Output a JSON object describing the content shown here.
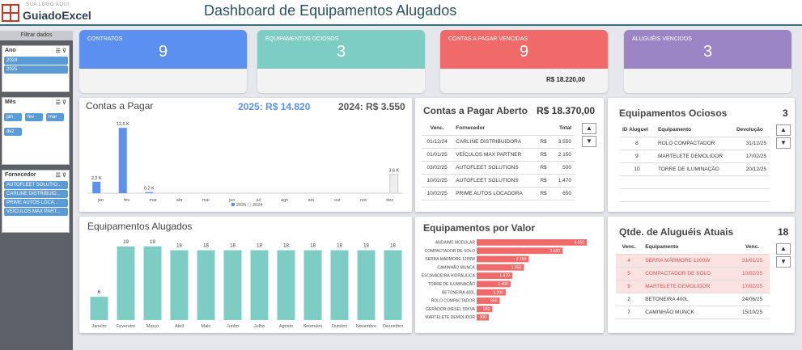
{
  "header": {
    "logo_small": "SUA LOGO AQUI",
    "logo_big": "GuiadoExcel",
    "title": "Dashboard de Equipamentos Alugados"
  },
  "sidebar": {
    "title": "Filtrar dados",
    "ano": {
      "label": "Ano",
      "items": [
        "2024",
        "2025"
      ]
    },
    "mes": {
      "label": "Mês",
      "items": [
        "jan",
        "fev",
        "mar",
        "dez"
      ]
    },
    "fornecedor": {
      "label": "Fornecedor",
      "items": [
        "AUTOFLEET SOLUTIO...",
        "CARLINE DISTRIBUID...",
        "PRIME AUTOS LOCA...",
        "VEÍCULOS MAX PART..."
      ]
    }
  },
  "kpis": [
    {
      "label": "CONTRATOS",
      "value": "9",
      "color": "#5b8ff0",
      "sub": ""
    },
    {
      "label": "EQUIPAMENTOS OCIOSOS",
      "value": "3",
      "color": "#7ecdc5",
      "sub": ""
    },
    {
      "label": "CONTAS A PAGAR VENCIDAS",
      "value": "9",
      "color": "#f06a6a",
      "sub": "R$ 18.220,00"
    },
    {
      "label": "ALUGUÉIS VENCIDOS",
      "value": "3",
      "color": "#9b85c4",
      "sub": ""
    }
  ],
  "contas_pagar": {
    "title": "Contas a Pagar",
    "total_2025": "2025: R$ 14.820",
    "total_2024": "2024: R$ 3.550",
    "legend_2025": "2025",
    "legend_2024": "2024"
  },
  "chart_data": [
    {
      "type": "bar",
      "title": "Contas a Pagar",
      "categories": [
        "jan",
        "fev",
        "mar",
        "abr",
        "mai",
        "jun",
        "jul",
        "ago",
        "set",
        "out",
        "nov",
        "dez"
      ],
      "series": [
        {
          "name": "2025",
          "values": [
            2.2,
            12.5,
            0.2,
            0,
            0,
            0,
            0,
            0,
            0,
            0,
            0,
            0
          ],
          "color": "#5b8ff0"
        },
        {
          "name": "2024",
          "values": [
            0,
            0,
            0,
            0,
            0,
            0,
            0,
            0,
            0,
            0,
            0,
            3.6
          ],
          "color": "#eeeeee"
        }
      ],
      "data_labels": [
        "2,2 K",
        "12,5 K",
        "0,2 K",
        "",
        "",
        "",
        "",
        "",
        "",
        "",
        "",
        "3,6 K"
      ],
      "ylim": [
        0,
        13
      ]
    },
    {
      "type": "bar",
      "title": "Equipamentos Alugados",
      "categories": [
        "Janeiro",
        "Fevereiro",
        "Março",
        "Abril",
        "Maio",
        "Junho",
        "Julho",
        "Agosto",
        "Setembro",
        "Outubro",
        "Novembro",
        "Dezembro"
      ],
      "values": [
        6,
        19,
        19,
        18,
        18,
        18,
        18,
        18,
        18,
        18,
        18,
        18
      ],
      "color": "#7ecdc5",
      "ylim": [
        0,
        20
      ]
    },
    {
      "type": "bar",
      "orientation": "horizontal",
      "title": "Equipamentos por Valor",
      "categories": [
        "ANDAIME MODULAR",
        "COMPACTADOR DE SOLO",
        "SERRA MÁRMORE 1200W",
        "CAMINHÃO MUNCK",
        "ESCAVADEIRA HIDRÁULICA",
        "TORRE DE ILUMINAÇÃO",
        "BETONEIRA 400L",
        "ROLO COMPACTADOR",
        "GERADOR DIESEL 50KVA",
        "MARTELETE DEMOLIDOR"
      ],
      "values": [
        4550,
        3550,
        2150,
        1950,
        1470,
        1400,
        1200,
        950,
        650,
        500
      ],
      "data_labels": [
        "4.550",
        "3.550",
        "2.150",
        "1.950",
        "1.470",
        "1.400",
        "1.200",
        "950",
        "650",
        "500"
      ],
      "color": "#f06a6a"
    }
  ],
  "contas_aberto": {
    "title": "Contas a Pagar Aberto",
    "total": "R$ 18.370,00",
    "headers": [
      "Venc.",
      "Fornecedor",
      "Total"
    ],
    "rows": [
      [
        "01/12/24",
        "CARLINE DISTRIBUIDORA",
        "R$",
        "3.550"
      ],
      [
        "01/01/25",
        "VEÍCULOS MAX PARTNER",
        "R$",
        "2.150"
      ],
      [
        "03/02/25",
        "AUTOFLEET SOLUTIONS",
        "R$",
        "500"
      ],
      [
        "10/02/25",
        "AUTOFLEET SOLUTIONS",
        "R$",
        "1.470"
      ],
      [
        "10/02/25",
        "PRIME AUTOS LOCADORA",
        "R$",
        "650"
      ]
    ]
  },
  "ociosos": {
    "title": "Equipamentos Ociosos",
    "count": "3",
    "headers": [
      "ID Aluguel",
      "Equipamento",
      "Devolução"
    ],
    "rows": [
      [
        "8",
        "ROLO COMPACTADOR",
        "31/12/25"
      ],
      [
        "9",
        "MARTELETE DEMOLIDOR",
        "17/02/25"
      ],
      [
        "10",
        "TORRE DE ILUMINAÇÃO",
        "20/12/25"
      ]
    ]
  },
  "alugueis": {
    "title": "Qtde. de Aluguéis Atuais",
    "count": "18",
    "headers": [
      "Venc.",
      "Equipamento",
      "Venc."
    ],
    "rows": [
      [
        "4",
        "SERRA MÁRMORE 1200W",
        "31/01/25",
        true
      ],
      [
        "5",
        "COMPACTADOR DE SOLO",
        "10/02/25",
        true
      ],
      [
        "9",
        "MARTELETE DEMOLIDOR",
        "17/02/25",
        true
      ],
      [
        "2",
        "BETONEIRA 400L",
        "24/06/25",
        false
      ],
      [
        "7",
        "CAMINHÃO MUNCK",
        "15/10/25",
        false
      ]
    ]
  },
  "eq_alugados": {
    "title": "Equipamentos Alugados"
  },
  "eq_valor": {
    "title": "Equipamentos por Valor"
  },
  "icons": {
    "up": "▲",
    "down": "▼",
    "multi": "☰",
    "filter": "⊽"
  }
}
